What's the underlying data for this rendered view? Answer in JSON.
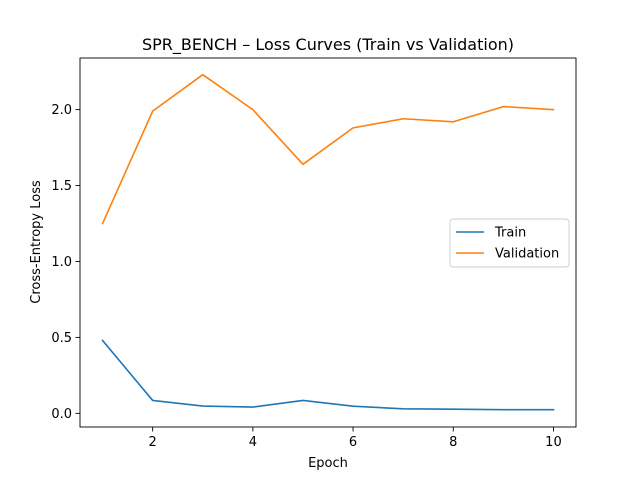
{
  "chart_data": {
    "type": "line",
    "title": "SPR_BENCH – Loss Curves (Train vs Validation)",
    "xlabel": "Epoch",
    "ylabel": "Cross-Entropy Loss",
    "x": [
      1,
      2,
      3,
      4,
      5,
      6,
      7,
      8,
      9,
      10
    ],
    "xlim": [
      0.55,
      10.45
    ],
    "ylim": [
      -0.09,
      2.34
    ],
    "xticks": [
      2,
      4,
      6,
      8,
      10
    ],
    "yticks": [
      0.0,
      0.5,
      1.0,
      1.5,
      2.0
    ],
    "xtick_labels": [
      "2",
      "4",
      "6",
      "8",
      "10"
    ],
    "ytick_labels": [
      "0.0",
      "0.5",
      "1.0",
      "1.5",
      "2.0"
    ],
    "grid": false,
    "legend_position": "center-right",
    "series": [
      {
        "name": "Train",
        "color": "#1f77b4",
        "values": [
          0.48,
          0.085,
          0.048,
          0.041,
          0.085,
          0.047,
          0.03,
          0.027,
          0.024,
          0.024
        ]
      },
      {
        "name": "Validation",
        "color": "#ff7f0e",
        "values": [
          1.25,
          1.99,
          2.23,
          2.0,
          1.64,
          1.88,
          1.94,
          1.92,
          2.02,
          2.0
        ]
      }
    ]
  }
}
